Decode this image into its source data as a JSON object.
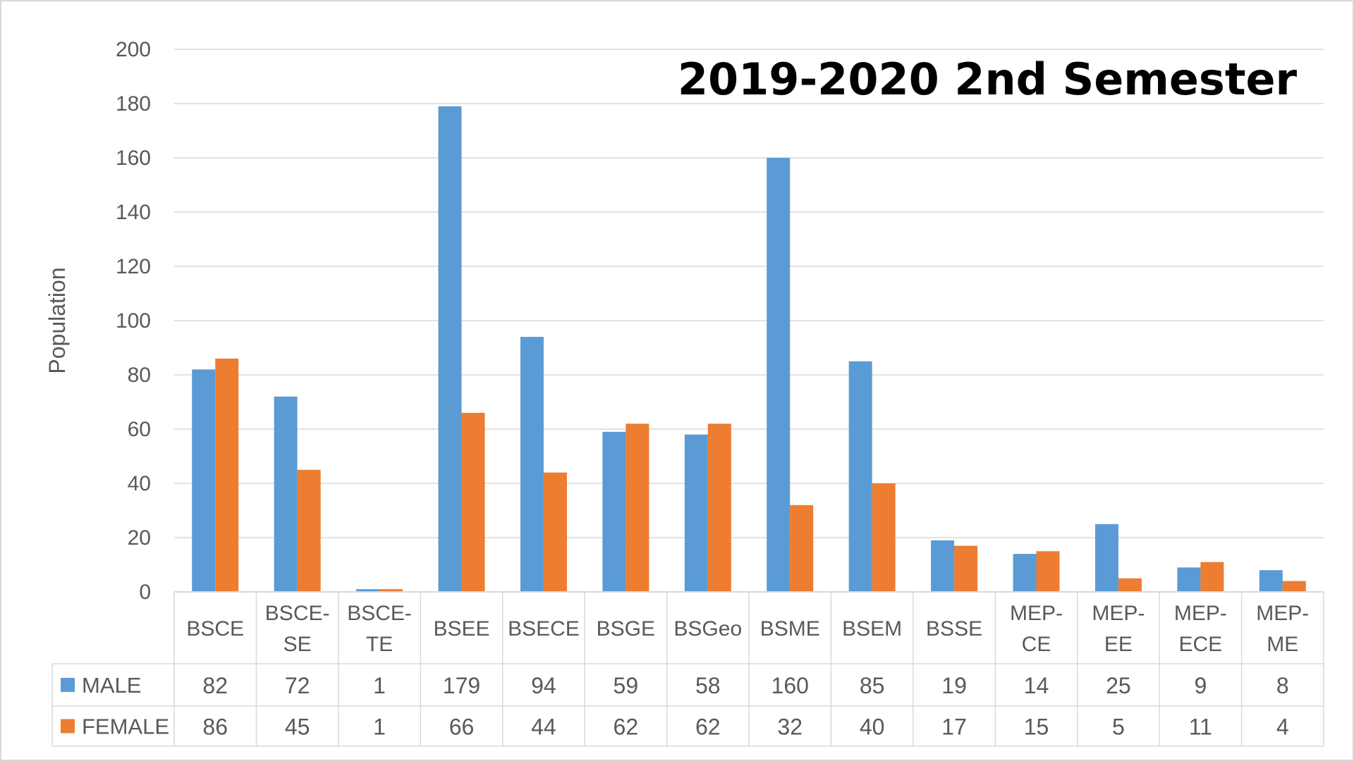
{
  "chart_data": {
    "type": "bar",
    "title": "2019-2020 2nd Semester",
    "xlabel": "",
    "ylabel": "Population",
    "ylim": [
      0,
      200
    ],
    "yticks": [
      0,
      20,
      40,
      60,
      80,
      100,
      120,
      140,
      160,
      180,
      200
    ],
    "grid": true,
    "legend": "data-table",
    "categories": [
      [
        "BSCE"
      ],
      [
        "BSCE-",
        "SE"
      ],
      [
        "BSCE-",
        "TE"
      ],
      [
        "BSEE"
      ],
      [
        "BSECE"
      ],
      [
        "BSGE"
      ],
      [
        "BSGeo"
      ],
      [
        "BSME"
      ],
      [
        "BSEM"
      ],
      [
        "BSSE"
      ],
      [
        "MEP-",
        "CE"
      ],
      [
        "MEP-",
        "EE"
      ],
      [
        "MEP-",
        "ECE"
      ],
      [
        "MEP-",
        "ME"
      ]
    ],
    "series": [
      {
        "name": "MALE",
        "color": "#5b9bd5",
        "values": [
          82,
          72,
          1,
          179,
          94,
          59,
          58,
          160,
          85,
          19,
          14,
          25,
          9,
          8
        ]
      },
      {
        "name": "FEMALE",
        "color": "#ed7d31",
        "values": [
          86,
          45,
          1,
          66,
          44,
          62,
          62,
          32,
          40,
          17,
          15,
          5,
          11,
          4
        ]
      }
    ]
  }
}
